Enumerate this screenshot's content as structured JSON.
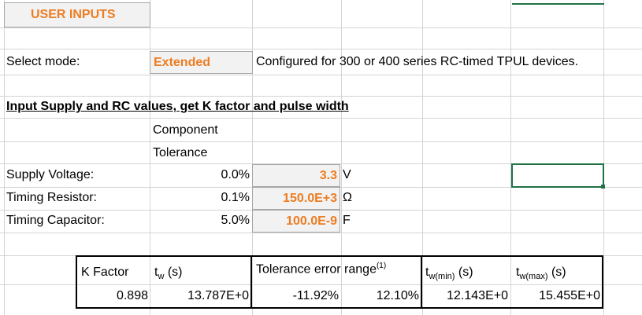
{
  "colors": {
    "accent_orange": "#ec7d22",
    "input_bg": "#f2f2f2",
    "selected_cell": "#217346"
  },
  "header": {
    "title": "USER INPUTS"
  },
  "mode": {
    "label": "Select mode:",
    "value": "Extended",
    "description": "Configured for 300 or 400 series RC-timed TPUL devices."
  },
  "section": {
    "title": "Input Supply and RC values, get K factor and pulse width",
    "component_label": "Component",
    "tolerance_label": "Tolerance"
  },
  "inputs": [
    {
      "label": "Supply Voltage:",
      "tolerance": "0.0%",
      "value": "3.3",
      "unit": "V"
    },
    {
      "label": "Timing Resistor:",
      "tolerance": "0.1%",
      "value": "150.0E+3",
      "unit": "Ω"
    },
    {
      "label": "Timing Capacitor:",
      "tolerance": "5.0%",
      "value": "100.0E-9",
      "unit": "F"
    }
  ],
  "results": {
    "k_label": "K Factor",
    "tw_label": "t",
    "tw_sub": "w",
    "tw_unit": " (s)",
    "err_label": "Tolerance error range",
    "err_sup": "(1)",
    "twmin_label": "t",
    "twmin_sub": "w(min)",
    "twmin_unit": " (s)",
    "twmax_label": "t",
    "twmax_sub": "w(max)",
    "twmax_unit": " (s)",
    "k_value": "0.898",
    "tw_value": "13.787E+0",
    "err_low": "-11.92%",
    "err_high": "12.10%",
    "twmin_value": "12.143E+0",
    "twmax_value": "15.455E+0"
  }
}
